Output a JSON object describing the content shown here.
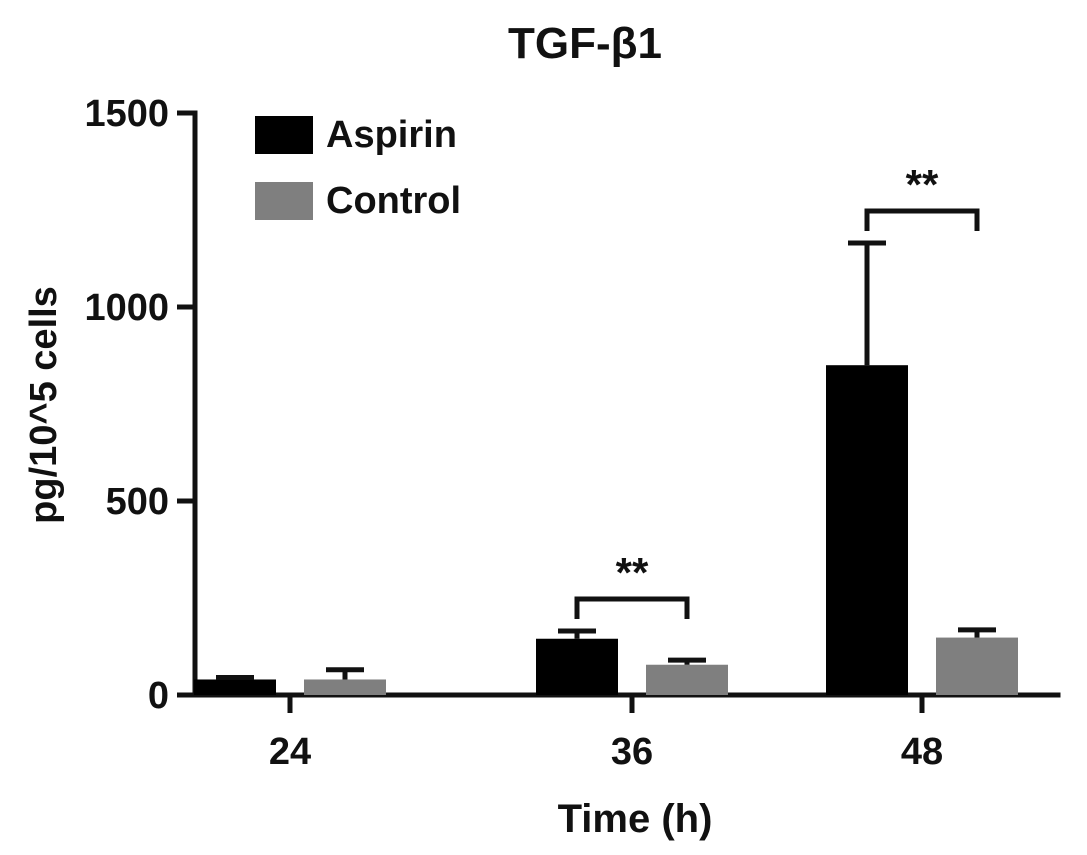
{
  "chart_data": {
    "type": "bar",
    "title": "TGF-β1",
    "xlabel": "Time (h)",
    "ylabel": "pg/10^5 cells",
    "categories": [
      "24",
      "36",
      "48"
    ],
    "ylim": [
      0,
      1500
    ],
    "yticks": [
      0,
      500,
      1000,
      1500
    ],
    "legend_position": "top-left",
    "grid": false,
    "series": [
      {
        "name": "Aspirin",
        "color": "#000000",
        "values": [
          40,
          145,
          850
        ],
        "errors": [
          5,
          20,
          315
        ]
      },
      {
        "name": "Control",
        "color": "#7f7f7f",
        "values": [
          40,
          78,
          148
        ],
        "errors": [
          25,
          12,
          20
        ]
      }
    ],
    "annotations": [
      {
        "category": "36",
        "label": "**"
      },
      {
        "category": "48",
        "label": "**"
      }
    ]
  }
}
